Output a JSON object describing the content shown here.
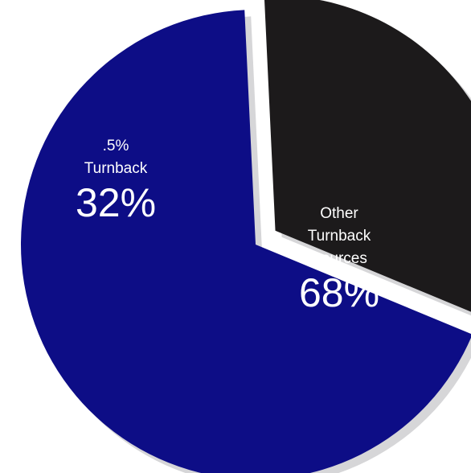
{
  "chart_data": {
    "type": "pie",
    "exploded": true,
    "slices": [
      {
        "label_lines": [
          ".5%",
          "Turnback"
        ],
        "value": 32,
        "value_label": "32%",
        "color": "#1c1a1b"
      },
      {
        "label_lines": [
          "Other",
          "Turnback",
          "Sources"
        ],
        "value": 68,
        "value_label": "68%",
        "color": "#0d0d86"
      }
    ],
    "shadow_color": "#d6d6d8"
  }
}
